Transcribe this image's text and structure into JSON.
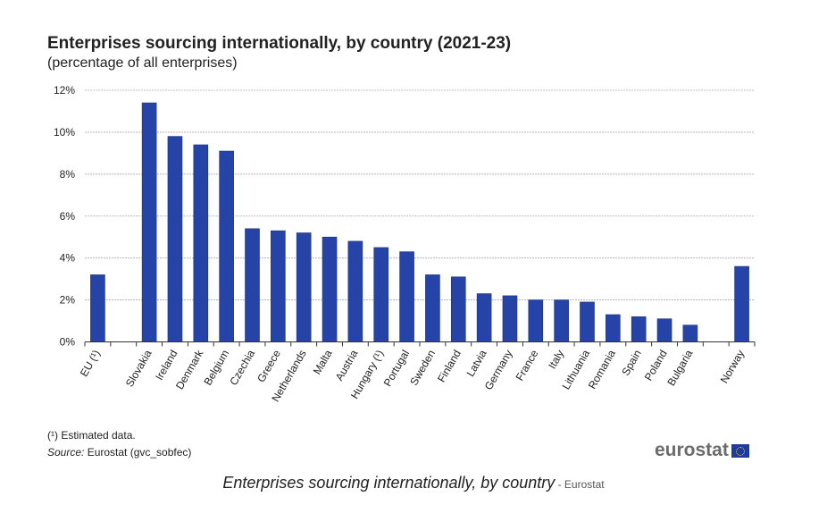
{
  "chart_data": {
    "type": "bar",
    "title": "Enterprises sourcing internationally, by country (2021-23)",
    "subtitle": "(percentage of all enterprises)",
    "categories": [
      "EU (¹)",
      "",
      "Slovakia",
      "Ireland",
      "Denmark",
      "Belgium",
      "Czechia",
      "Greece",
      "Netherlands",
      "Malta",
      "Austria",
      "Hungary (¹)",
      "Portugal",
      "Sweden",
      "Finland",
      "Latvia",
      "Germany",
      "France",
      "Italy",
      "Lithuania",
      "Romania",
      "Spain",
      "Poland",
      "Bulgaria",
      "",
      "Norway"
    ],
    "values": [
      3.2,
      null,
      11.4,
      9.8,
      9.4,
      9.1,
      5.4,
      5.3,
      5.2,
      5.0,
      4.8,
      4.5,
      4.3,
      3.2,
      3.1,
      2.3,
      2.2,
      2.0,
      2.0,
      1.9,
      1.3,
      1.2,
      1.1,
      0.8,
      null,
      3.6
    ],
    "ylim": [
      0,
      12
    ],
    "yticks": [
      "0%",
      "2%",
      "4%",
      "6%",
      "8%",
      "10%",
      "12%"
    ],
    "xlabel": "",
    "ylabel": "",
    "grid": true,
    "bar_color": "#2644a8"
  },
  "footer": {
    "note": "(¹) Estimated data.",
    "source_label": "Source:",
    "source_text": " Eurostat (gvc_sobfec)",
    "logo": "eurostat"
  },
  "caption": {
    "title": "Enterprises sourcing internationally, by country",
    "suffix": " - Eurostat"
  }
}
